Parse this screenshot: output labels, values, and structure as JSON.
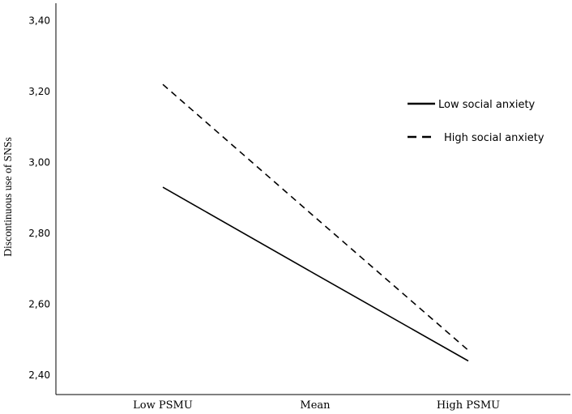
{
  "chart_data": {
    "type": "line",
    "title": "",
    "xlabel": "",
    "ylabel": "Discontinuous use of SNSs",
    "categories": [
      "Low PSMU",
      "Mean",
      "High PSMU"
    ],
    "ylim": [
      2.4,
      3.44
    ],
    "yticks": [
      "2,40",
      "2,60",
      "2,80",
      "3,00",
      "3,20",
      "3,40"
    ],
    "ytick_values": [
      2.4,
      2.6,
      2.8,
      3.0,
      3.2,
      3.4
    ],
    "grid": false,
    "legend_position": "right",
    "series": [
      {
        "name": "Low social anxiety",
        "line_style": "solid",
        "color": "#000000",
        "values": [
          2.93,
          2.685,
          2.44
        ]
      },
      {
        "name": "High social anxiety",
        "line_style": "dashed",
        "color": "#000000",
        "values": [
          3.22,
          2.845,
          2.47
        ]
      }
    ]
  }
}
